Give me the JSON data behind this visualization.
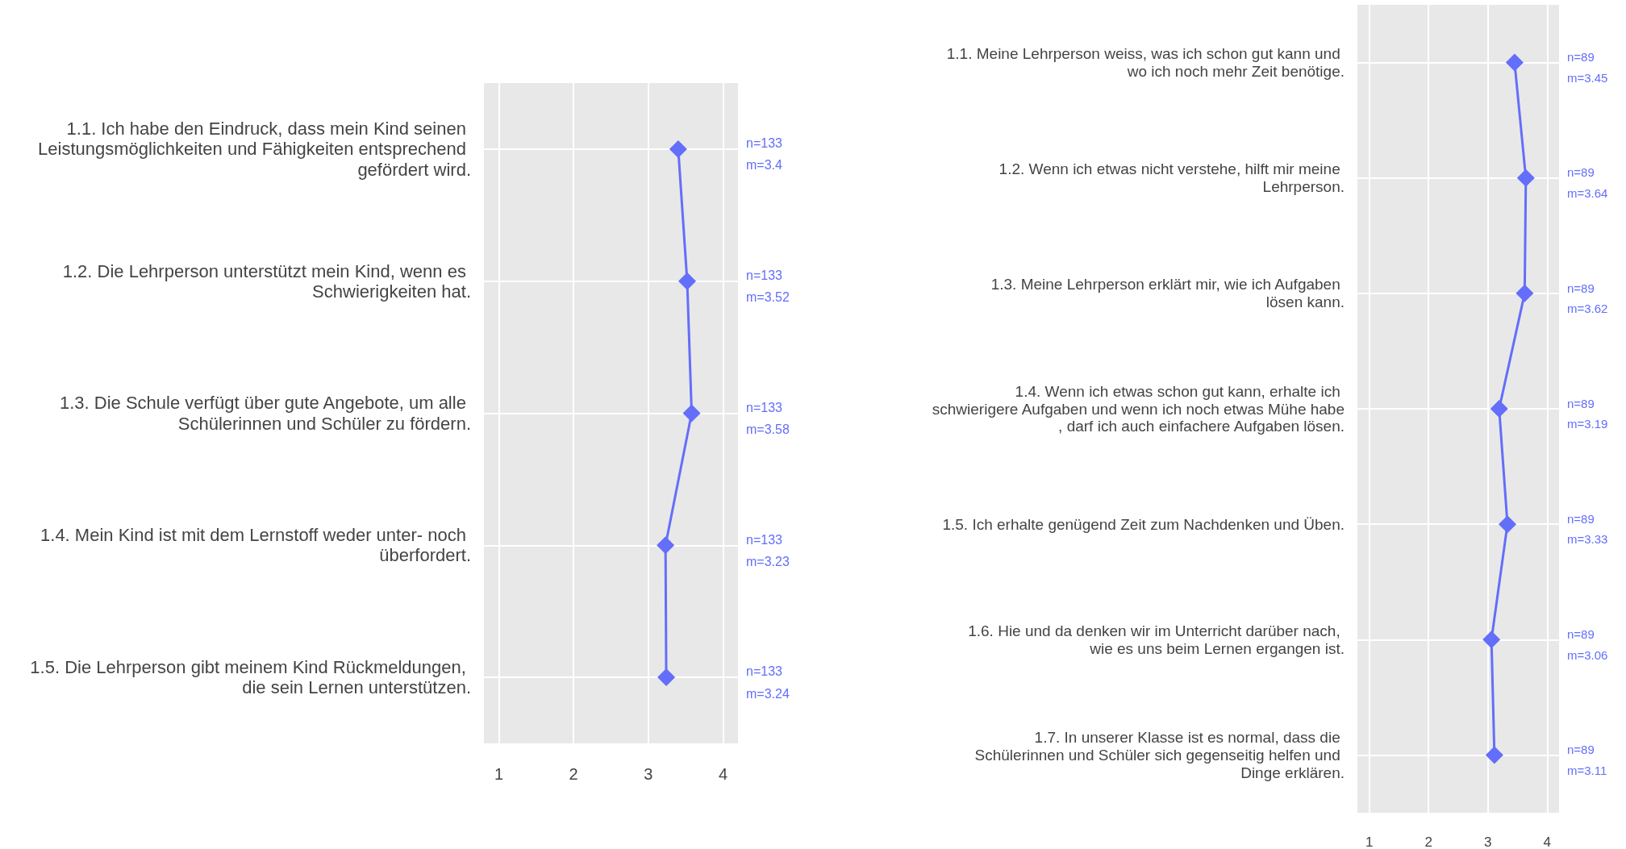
{
  "chart_data": [
    {
      "type": "line",
      "orientation": "horizontal",
      "categories": [
        "1.1. Ich habe den Eindruck, dass mein Kind seinen Leistungsmöglichkeiten und Fähigkeiten entsprechend gefördert wird.",
        "1.2. Die Lehrperson unterstützt mein Kind, wenn es Schwierigkeiten hat.",
        "1.3. Die Schule verfügt über gute Angebote, um alle Schülerinnen und Schüler zu fördern.",
        "1.4. Mein Kind ist mit dem Lernstoff weder unter- noch überfordert.",
        "1.5. Die Lehrperson gibt meinem Kind Rückmeldungen, die sein Lernen unterstützen."
      ],
      "series": [
        {
          "color": "#636efa",
          "values": [
            3.4,
            3.52,
            3.58,
            3.23,
            3.24
          ]
        }
      ],
      "annotations": [
        "n=133\nm=3.4",
        "n=133\nm=3.52",
        "n=133\nm=3.58",
        "n=133\nm=3.23",
        "n=133\nm=3.24"
      ],
      "xlim": [
        0.8,
        4.2
      ],
      "xticks": [
        1,
        2,
        3,
        4
      ],
      "grid": true,
      "marker": "diamond",
      "line_style": "solid"
    },
    {
      "type": "line",
      "orientation": "horizontal",
      "categories": [
        "1.1. Meine Lehrperson weiss, was ich schon gut kann und wo ich noch mehr Zeit benötige.",
        "1.2. Wenn ich etwas nicht verstehe, hilft mir meine Lehrperson.",
        "1.3. Meine Lehrperson erklärt mir, wie ich Aufgaben lösen kann.",
        "1.4. Wenn ich etwas schon gut kann, erhalte ich schwierigere Aufgaben und wenn ich noch etwas Mühe habe, darf ich auch einfachere Aufgaben lösen.",
        "1.5. Ich erhalte genügend Zeit zum Nachdenken und Üben.",
        "1.6. Hie und da denken wir im Unterricht darüber nach, wie es uns beim Lernen ergangen ist.",
        "1.7. In unserer Klasse ist es normal, dass die Schülerinnen und Schüler sich gegenseitig helfen und Dinge erklären."
      ],
      "series": [
        {
          "color": "#636efa",
          "values": [
            3.45,
            3.64,
            3.62,
            3.19,
            3.33,
            3.06,
            3.11
          ]
        }
      ],
      "annotations": [
        "n=89\nm=3.45",
        "n=89\nm=3.64",
        "n=89\nm=3.62",
        "n=89\nm=3.19",
        "n=89\nm=3.33",
        "n=89\nm=3.06",
        "n=89\nm=3.11"
      ],
      "xlim": [
        0.8,
        4.2
      ],
      "xticks": [
        1,
        2,
        3,
        4
      ],
      "grid": true,
      "marker": "diamond",
      "line_style": "solid"
    }
  ]
}
